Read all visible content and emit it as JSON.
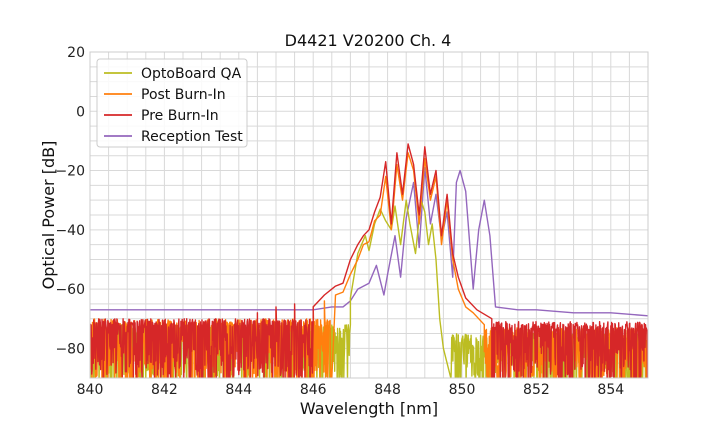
{
  "chart_data": {
    "type": "line",
    "title": "D4421 V20200 Ch. 4",
    "xlabel": "Wavelength [nm]",
    "ylabel": "Optical Power [dB]",
    "xlim": [
      840,
      855
    ],
    "ylim": [
      -90,
      20
    ],
    "xticks": [
      "840",
      "842",
      "844",
      "846",
      "848",
      "850",
      "852",
      "854"
    ],
    "yticks": [
      "20",
      "0",
      "−20",
      "−40",
      "−60",
      "−80"
    ],
    "grid": true,
    "legend_position": "top-left",
    "series": [
      {
        "name": "OptoBoard QA",
        "color": "#bcbd22",
        "noise": {
          "x_range": [
            840,
            847.0
          ],
          "floor": -90,
          "top": -72
        },
        "noise_right": {
          "x_range": [
            849.7,
            855
          ],
          "floor": -90,
          "top": -75
        },
        "x": [
          847.0,
          847.2,
          847.4,
          847.5,
          847.65,
          847.8,
          847.95,
          848.1,
          848.2,
          848.35,
          848.5,
          848.6,
          848.75,
          848.9,
          849.0,
          849.1,
          849.2,
          849.3,
          849.4,
          849.5,
          849.6,
          849.7
        ],
        "y": [
          -63,
          -48,
          -42,
          -47,
          -38,
          -33,
          -37,
          -40,
          -32,
          -45,
          -30,
          -38,
          -48,
          -30,
          -34,
          -45,
          -38,
          -50,
          -70,
          -80,
          -85,
          -90
        ]
      },
      {
        "name": "Post Burn-In",
        "color": "#ff7f0e",
        "noise": {
          "x_range": [
            840,
            846.5
          ],
          "floor": -90,
          "top": -70
        },
        "noise_right": {
          "x_range": [
            850.6,
            855
          ],
          "floor": -90,
          "top": -73
        },
        "x": [
          845.0,
          845.5,
          846.0,
          846.3,
          846.6,
          846.8,
          847.0,
          847.2,
          847.35,
          847.5,
          847.65,
          847.8,
          847.95,
          848.1,
          848.25,
          848.4,
          848.55,
          848.7,
          848.85,
          849.0,
          849.15,
          849.3,
          849.45,
          849.6,
          849.75,
          849.9,
          850.1,
          850.3,
          850.6
        ],
        "y": [
          -67,
          -67,
          -66,
          -64,
          -62,
          -61,
          -55,
          -50,
          -45,
          -44,
          -37,
          -35,
          -22,
          -40,
          -18,
          -30,
          -14,
          -20,
          -38,
          -16,
          -30,
          -22,
          -45,
          -30,
          -50,
          -60,
          -66,
          -68,
          -72
        ]
      },
      {
        "name": "Pre Burn-In",
        "color": "#d62728",
        "noise": {
          "x_range": [
            840,
            846.0
          ],
          "floor": -88,
          "top": -70
        },
        "noise_right": {
          "x_range": [
            850.8,
            855
          ],
          "floor": -90,
          "top": -71
        },
        "x": [
          844.5,
          845.0,
          845.5,
          846.0,
          846.3,
          846.6,
          846.8,
          847.0,
          847.2,
          847.35,
          847.5,
          847.65,
          847.8,
          847.95,
          848.1,
          848.25,
          848.4,
          848.55,
          848.7,
          848.85,
          849.0,
          849.15,
          849.3,
          849.45,
          849.6,
          849.75,
          849.9,
          850.1,
          850.4,
          850.8
        ],
        "y": [
          -68,
          -66,
          -65,
          -66,
          -62,
          -59,
          -58,
          -50,
          -45,
          -42,
          -40,
          -34,
          -29,
          -17,
          -38,
          -14,
          -28,
          -11,
          -18,
          -35,
          -12,
          -28,
          -20,
          -42,
          -28,
          -48,
          -56,
          -63,
          -67,
          -70
        ]
      },
      {
        "name": "Reception Test",
        "color": "#9467bd",
        "x": [
          840,
          842,
          844,
          845,
          846,
          846.5,
          846.8,
          847.0,
          847.2,
          847.5,
          847.7,
          847.9,
          848.0,
          848.2,
          848.35,
          848.5,
          848.7,
          848.85,
          849.0,
          849.15,
          849.3,
          849.45,
          849.6,
          849.75,
          849.85,
          849.95,
          850.1,
          850.3,
          850.45,
          850.6,
          850.75,
          850.9,
          851.5,
          852,
          853,
          854,
          855
        ],
        "y": [
          -67,
          -67,
          -67,
          -67,
          -67,
          -66,
          -66,
          -64,
          -60,
          -58,
          -52,
          -62,
          -55,
          -42,
          -56,
          -36,
          -24,
          -46,
          -19,
          -38,
          -28,
          -43,
          -34,
          -56,
          -24,
          -20,
          -27,
          -60,
          -40,
          -30,
          -42,
          -66,
          -67,
          -67,
          -68,
          -68,
          -69
        ]
      }
    ]
  }
}
